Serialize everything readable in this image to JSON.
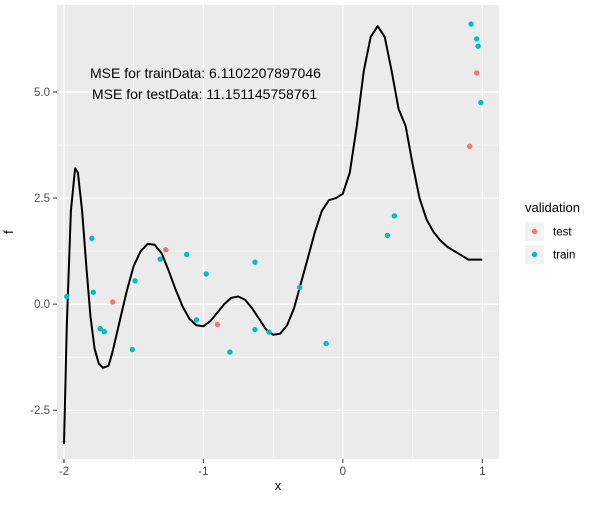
{
  "chart_data": {
    "type": "scatter",
    "title": "",
    "xlabel": "x",
    "ylabel": "f",
    "xlim": [
      -2.05,
      1.12
    ],
    "ylim": [
      -3.65,
      7.05
    ],
    "xticks": [
      -2,
      -1,
      0,
      1
    ],
    "xtick_labels": [
      "-2",
      "-1",
      "0",
      "1"
    ],
    "yticks": [
      -2.5,
      0,
      2.5,
      5
    ],
    "ytick_labels": [
      "-2.5",
      "0.0",
      "2.5",
      "5.0"
    ],
    "grid": true,
    "legend": {
      "title": "validation",
      "placement": "right",
      "entries": [
        {
          "label": "test",
          "color": "#F8766D"
        },
        {
          "label": "train",
          "color": "#00BFC4"
        }
      ]
    },
    "annotations": [
      "MSE for trainData: 6.1102207897046",
      "MSE for testData: 11.151145758761"
    ],
    "series": [
      {
        "name": "test",
        "color": "#F8766D",
        "points": [
          {
            "x": -1.65,
            "y": 0.05
          },
          {
            "x": -1.27,
            "y": 1.28
          },
          {
            "x": -0.9,
            "y": -0.48
          },
          {
            "x": 0.91,
            "y": 3.72
          },
          {
            "x": 0.96,
            "y": 5.45
          }
        ]
      },
      {
        "name": "train",
        "color": "#00BFC4",
        "points": [
          {
            "x": -1.98,
            "y": 0.18
          },
          {
            "x": -1.8,
            "y": 1.55
          },
          {
            "x": -1.79,
            "y": 0.28
          },
          {
            "x": -1.74,
            "y": -0.58
          },
          {
            "x": -1.71,
            "y": -0.65
          },
          {
            "x": -1.51,
            "y": -1.07
          },
          {
            "x": -1.49,
            "y": 0.55
          },
          {
            "x": -1.31,
            "y": 1.06
          },
          {
            "x": -1.12,
            "y": 1.17
          },
          {
            "x": -1.05,
            "y": -0.37
          },
          {
            "x": -0.98,
            "y": 0.71
          },
          {
            "x": -0.81,
            "y": -1.13
          },
          {
            "x": -0.63,
            "y": 0.99
          },
          {
            "x": -0.63,
            "y": -0.6
          },
          {
            "x": -0.53,
            "y": -0.66
          },
          {
            "x": -0.31,
            "y": 0.39
          },
          {
            "x": -0.12,
            "y": -0.93
          },
          {
            "x": 0.32,
            "y": 1.62
          },
          {
            "x": 0.37,
            "y": 2.08
          },
          {
            "x": 0.92,
            "y": 6.6
          },
          {
            "x": 0.96,
            "y": 6.25
          },
          {
            "x": 0.97,
            "y": 6.08
          },
          {
            "x": 0.99,
            "y": 4.75
          }
        ]
      }
    ],
    "fit_line": {
      "color": "#000000",
      "x": [
        -2,
        -1.98,
        -1.95,
        -1.92,
        -1.9,
        -1.87,
        -1.84,
        -1.81,
        -1.78,
        -1.75,
        -1.72,
        -1.68,
        -1.65,
        -1.6,
        -1.55,
        -1.5,
        -1.45,
        -1.4,
        -1.35,
        -1.3,
        -1.25,
        -1.2,
        -1.15,
        -1.1,
        -1.05,
        -1,
        -0.95,
        -0.9,
        -0.85,
        -0.8,
        -0.75,
        -0.7,
        -0.65,
        -0.6,
        -0.55,
        -0.5,
        -0.45,
        -0.4,
        -0.35,
        -0.3,
        -0.25,
        -0.2,
        -0.15,
        -0.1,
        -0.05,
        0,
        0.05,
        0.1,
        0.15,
        0.2,
        0.25,
        0.3,
        0.35,
        0.4,
        0.45,
        0.5,
        0.55,
        0.6,
        0.65,
        0.7,
        0.75,
        0.8,
        0.85,
        0.9,
        0.92,
        0.95,
        0.97,
        0.99,
        1.0
      ],
      "y": [
        -3.3,
        -0.5,
        2.2,
        3.2,
        3.1,
        2.2,
        0.9,
        -0.3,
        -1.05,
        -1.4,
        -1.5,
        -1.45,
        -1.1,
        -0.4,
        0.3,
        0.9,
        1.25,
        1.42,
        1.4,
        1.2,
        0.8,
        0.35,
        -0.05,
        -0.35,
        -0.5,
        -0.52,
        -0.4,
        -0.2,
        0.0,
        0.15,
        0.18,
        0.1,
        -0.1,
        -0.35,
        -0.6,
        -0.72,
        -0.7,
        -0.5,
        -0.1,
        0.5,
        1.1,
        1.7,
        2.2,
        2.45,
        2.5,
        2.6,
        3.1,
        4.2,
        5.5,
        6.3,
        6.55,
        6.3,
        5.5,
        4.6,
        4.2,
        3.3,
        2.5,
        2.0,
        1.7,
        1.5,
        1.35,
        1.25,
        1.15,
        1.05,
        1.05,
        1.05,
        1.05,
        1.05,
        1.05
      ]
    }
  }
}
